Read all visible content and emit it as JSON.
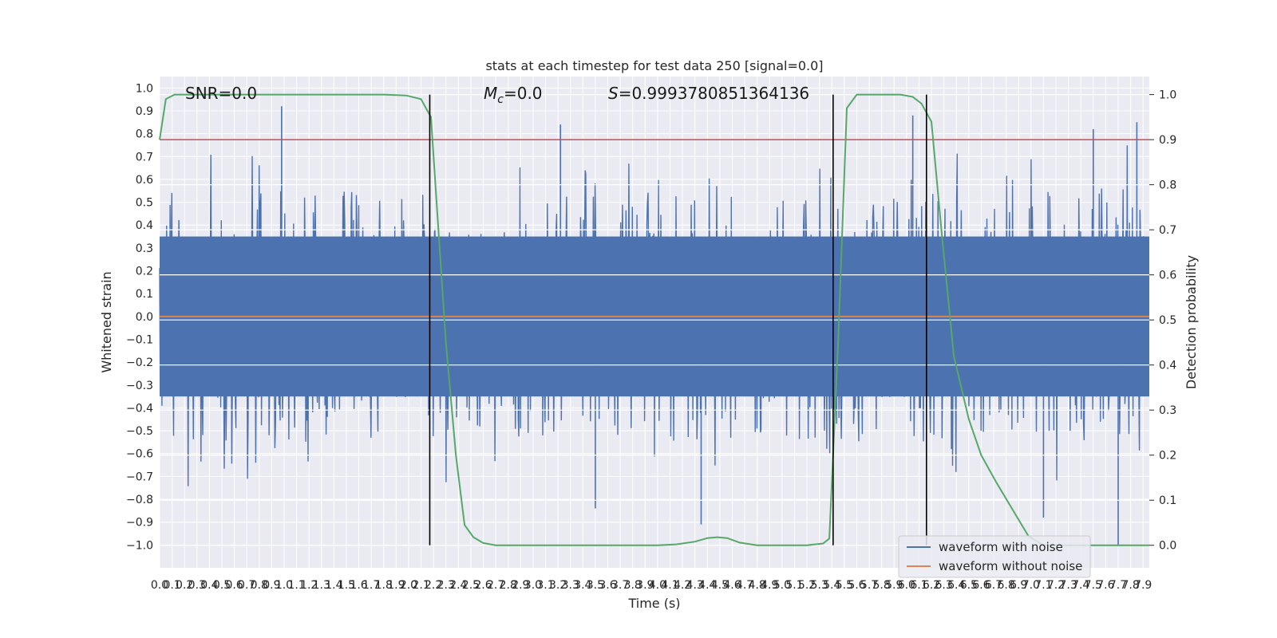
{
  "chart_data": {
    "type": "line",
    "title": "stats at each timestep for test data 250 [signal=0.0]",
    "xlabel": "Time (s)",
    "ylabel": "Whitened strain",
    "y2label": "Detection probability",
    "xlim": [
      0.0,
      7.95
    ],
    "ylim": [
      -1.1,
      1.05
    ],
    "y2lim": [
      -0.05,
      1.04
    ],
    "x_ticks": [
      0.0,
      0.1,
      0.2,
      0.3,
      0.4,
      0.5,
      0.6,
      0.7,
      0.8,
      0.9,
      1.0,
      1.1,
      1.2,
      1.3,
      1.4,
      1.5,
      1.6,
      1.7,
      1.8,
      1.9,
      2.0,
      2.1,
      2.2,
      2.3,
      2.4,
      2.5,
      2.6,
      2.7,
      2.8,
      2.9,
      3.0,
      3.1,
      3.2,
      3.3,
      3.4,
      3.5,
      3.6,
      3.7,
      3.8,
      3.9,
      4.0,
      4.1,
      4.2,
      4.3,
      4.4,
      4.5,
      4.6,
      4.7,
      4.8,
      4.9,
      5.0,
      5.1,
      5.2,
      5.3,
      5.4,
      5.5,
      5.6,
      5.7,
      5.8,
      5.9,
      6.0,
      6.1,
      6.2,
      6.3,
      6.4,
      6.5,
      6.6,
      6.7,
      6.8,
      6.9,
      7.0,
      7.1,
      7.2,
      7.3,
      7.4,
      7.5,
      7.6,
      7.7,
      7.8,
      7.9
    ],
    "x_tick_labels": [
      "0.0",
      "0.1",
      "0.2",
      "0.3",
      "0.4",
      "0.5",
      "0.6",
      "0.7",
      "0.8",
      "0.9",
      "1.0",
      "1.1",
      "1.2",
      "1.3",
      "1.4",
      "1.5",
      "1.6",
      "1.7",
      "1.8",
      "1.9",
      "2.0",
      "2.1",
      "2.2",
      "2.3",
      "2.4",
      "2.5",
      "2.6",
      "2.7",
      "2.8",
      "2.9",
      "3.0",
      "3.1",
      "3.2",
      "3.3",
      "3.4",
      "3.5",
      "3.6",
      "3.7",
      "3.8",
      "3.9",
      "4.0",
      "4.1",
      "4.2",
      "4.3",
      "4.4",
      "4.5",
      "4.6",
      "4.7",
      "4.8",
      "4.9",
      "5.0",
      "5.1",
      "5.2",
      "5.3",
      "5.4",
      "5.5",
      "5.6",
      "5.7",
      "5.8",
      "5.9",
      "6.0",
      "6.1",
      "6.2",
      "6.3",
      "6.4",
      "6.5",
      "6.6",
      "6.7",
      "6.8",
      "6.9",
      "7.0",
      "7.1",
      "7.2",
      "7.3",
      "7.4",
      "7.5",
      "7.6",
      "7.7",
      "7.8",
      "7.9"
    ],
    "y_ticks": [
      1.0,
      0.9,
      0.8,
      0.7,
      0.6,
      0.5,
      0.4,
      0.3,
      0.2,
      0.1,
      0.0,
      -0.1,
      -0.2,
      -0.3,
      -0.4,
      -0.5,
      -0.6,
      -0.7,
      -0.8,
      -0.9,
      -1.0
    ],
    "y_tick_labels": [
      "1.0",
      "0.9",
      "0.8",
      "0.7",
      "0.6",
      "0.5",
      "0.4",
      "0.3",
      "0.2",
      "0.1",
      "0.0",
      "−0.1",
      "−0.2",
      "−0.3",
      "−0.4",
      "−0.5",
      "−0.6",
      "−0.7",
      "−0.8",
      "−0.9",
      "−1.0"
    ],
    "y2_ticks": [
      1.0,
      0.9,
      0.8,
      0.7,
      0.6,
      0.5,
      0.4,
      0.3,
      0.2,
      0.1,
      0.0
    ],
    "y2_tick_labels": [
      "1.0",
      "0.9",
      "0.8",
      "0.7",
      "0.6",
      "0.5",
      "0.4",
      "0.3",
      "0.2",
      "0.1",
      "0.0"
    ],
    "series": [
      {
        "name": "waveform with noise",
        "color": "#4c72b0",
        "kind": "noise",
        "amplitude_core": 0.35,
        "peak_max": 0.92,
        "trough_min": -1.0,
        "notable_peaks": [
          [
            0.98,
            0.92
          ],
          [
            3.22,
            0.84
          ],
          [
            6.05,
            0.88
          ],
          [
            7.85,
            0.85
          ],
          [
            7.5,
            0.82
          ]
        ],
        "notable_troughs": [
          [
            4.35,
            -0.91
          ],
          [
            7.7,
            -1.0
          ],
          [
            3.5,
            -0.84
          ],
          [
            7.1,
            -0.88
          ]
        ]
      },
      {
        "name": "waveform without noise",
        "color": "#dd8452",
        "values_constant": 0.0
      },
      {
        "name": "detection probability",
        "color": "#55a868",
        "axis": "right",
        "points": [
          [
            0.0,
            0.9
          ],
          [
            0.05,
            0.99
          ],
          [
            0.12,
            1.0
          ],
          [
            1.8,
            1.0
          ],
          [
            1.98,
            0.998
          ],
          [
            2.1,
            0.99
          ],
          [
            2.18,
            0.95
          ],
          [
            2.22,
            0.78
          ],
          [
            2.3,
            0.45
          ],
          [
            2.38,
            0.2
          ],
          [
            2.45,
            0.045
          ],
          [
            2.52,
            0.018
          ],
          [
            2.6,
            0.005
          ],
          [
            2.7,
            0.0
          ],
          [
            4.0,
            0.0
          ],
          [
            4.15,
            0.002
          ],
          [
            4.3,
            0.008
          ],
          [
            4.4,
            0.016
          ],
          [
            4.48,
            0.018
          ],
          [
            4.56,
            0.016
          ],
          [
            4.66,
            0.006
          ],
          [
            4.8,
            0.0
          ],
          [
            5.2,
            0.0
          ],
          [
            5.33,
            0.004
          ],
          [
            5.38,
            0.015
          ],
          [
            5.45,
            0.45
          ],
          [
            5.52,
            0.97
          ],
          [
            5.6,
            1.0
          ],
          [
            5.95,
            1.0
          ],
          [
            6.05,
            0.995
          ],
          [
            6.12,
            0.98
          ],
          [
            6.2,
            0.94
          ],
          [
            6.28,
            0.7
          ],
          [
            6.38,
            0.42
          ],
          [
            6.5,
            0.28
          ],
          [
            6.6,
            0.2
          ],
          [
            6.72,
            0.14
          ],
          [
            6.85,
            0.08
          ],
          [
            6.98,
            0.02
          ],
          [
            7.1,
            0.0
          ],
          [
            7.95,
            0.0
          ]
        ]
      }
    ],
    "threshold_line": {
      "value": 0.9,
      "axis": "right",
      "color": "#c44e52"
    },
    "vertical_lines": [
      2.17,
      5.41,
      6.16
    ],
    "annotations": [
      {
        "text_plain": "SNR=0.0"
      },
      {
        "text_math": "M",
        "sub": "c",
        "rest": "=0.0"
      },
      {
        "text_math": "S",
        "rest": "=0.9993780851364136"
      }
    ],
    "legend": {
      "position": "lower-right",
      "entries": [
        {
          "label": "waveform with noise",
          "color": "#4c72b0"
        },
        {
          "label": "waveform without noise",
          "color": "#dd8452"
        }
      ]
    },
    "background": "#eaeaf2",
    "grid": true
  }
}
